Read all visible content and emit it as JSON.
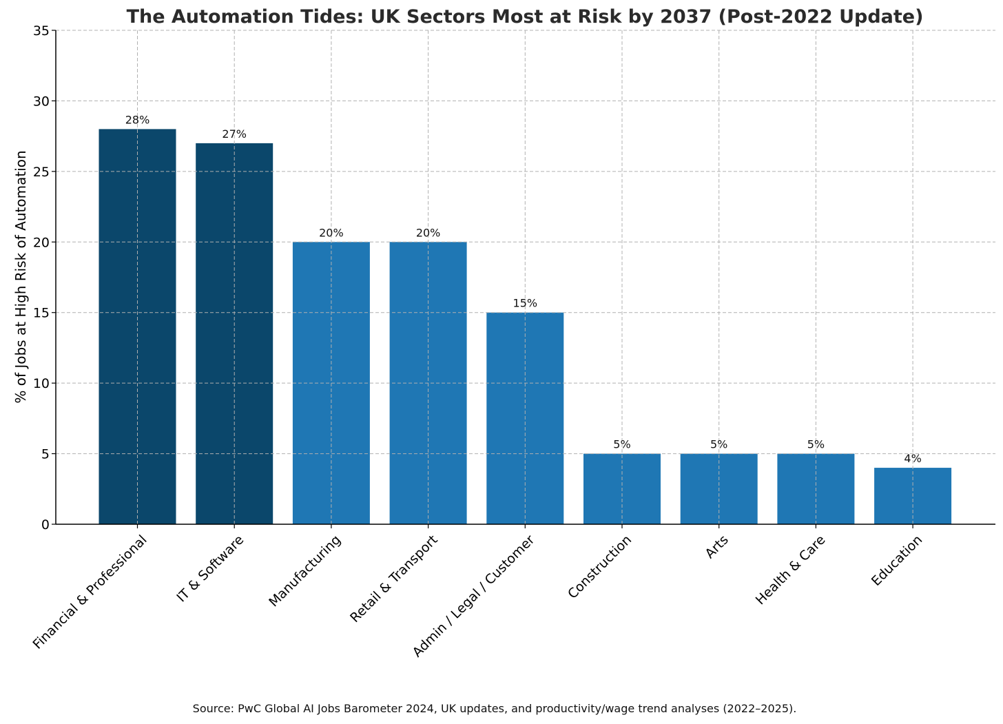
{
  "chart_data": {
    "type": "bar",
    "title": "The Automation Tides: UK Sectors Most at Risk by 2037 (Post-2022 Update)",
    "xlabel": "",
    "ylabel": "% of Jobs at High Risk of Automation",
    "ylim": [
      0,
      35
    ],
    "yticks": [
      0,
      5,
      10,
      15,
      20,
      25,
      30,
      35
    ],
    "grid": true,
    "categories": [
      "Financial & Professional",
      "IT & Software",
      "Manufacturing",
      "Retail & Transport",
      "Admin / Legal / Customer",
      "Construction",
      "Arts",
      "Health & Care",
      "Education"
    ],
    "values": [
      28,
      27,
      20,
      20,
      15,
      5,
      5,
      5,
      4
    ],
    "data_labels": [
      "28%",
      "27%",
      "20%",
      "20%",
      "15%",
      "5%",
      "5%",
      "5%",
      "4%"
    ],
    "highlighted": [
      true,
      true,
      false,
      false,
      false,
      false,
      false,
      false,
      false
    ],
    "colors": {
      "highlight": "#0b476b",
      "default": "#1f77b4"
    },
    "source": "Source: PwC Global AI Jobs Barometer 2024, UK updates, and productivity/wage trend analyses (2022–2025)."
  }
}
